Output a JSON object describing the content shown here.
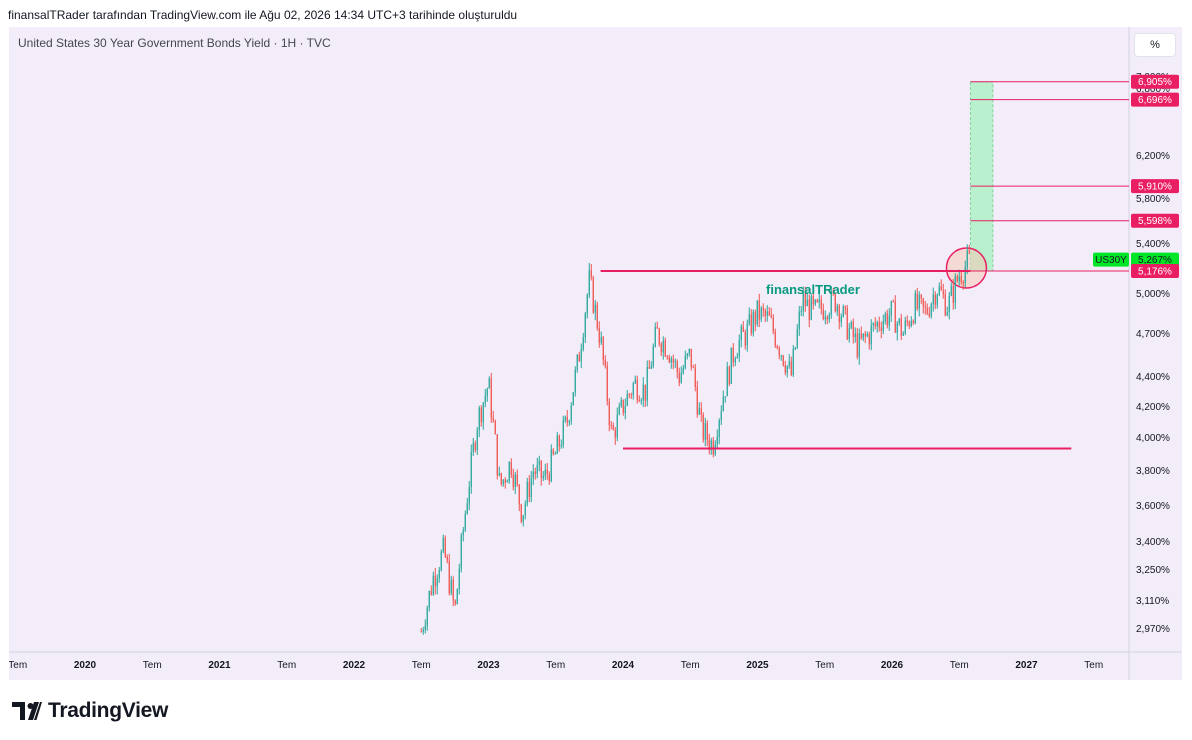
{
  "header": {
    "caption": "finansalTRader tarafından TradingView.com ile Ağu 02, 2026 14:34 UTC+3 tarihinde oluşturuldu"
  },
  "toolbar": {
    "symbol_title": "United States 30 Year Government Bonds Yield · 1H · TVC",
    "unit_label": "%"
  },
  "footer": {
    "brand": "TradingView"
  },
  "colors": {
    "panel_bg": "#f3edf9",
    "up": "#26a69a",
    "down": "#ef5350",
    "line": "#e91e63",
    "target_zone": "#b9f0cd",
    "circle": "#f6c9b8",
    "current_price": "#00e526",
    "watermark": "#089981"
  },
  "chart_data": {
    "type": "line",
    "title": "United States 30 Year Government Bonds Yield · 1H · TVC",
    "symbol": "US30Y",
    "watermark": "finansalTRader",
    "unit": "%",
    "x_labels": [
      "Tem",
      "2020",
      "Tem",
      "2021",
      "Tem",
      "2022",
      "Tem",
      "2023",
      "Tem",
      "2024",
      "Tem",
      "2025",
      "Tem",
      "2026",
      "Tem",
      "2027",
      "Tem"
    ],
    "y_ticks": [
      "7,000%",
      "6,800%",
      "6,200%",
      "5,800%",
      "5,400%",
      "5,000%",
      "4,700%",
      "4,400%",
      "4,200%",
      "4,000%",
      "3,800%",
      "3,600%",
      "3,400%",
      "3,250%",
      "3,110%",
      "2,970%"
    ],
    "y_scale": "log",
    "y_range": [
      2.85,
      7.1
    ],
    "x_range": [
      "2019-07",
      "2027-07"
    ],
    "price_labels": [
      {
        "label": "6,905%",
        "value": 6.905
      },
      {
        "label": "6,696%",
        "value": 6.696
      },
      {
        "label": "5,910%",
        "value": 5.91
      },
      {
        "label": "5,598%",
        "value": 5.598
      },
      {
        "label": "5,267%",
        "value": 5.267,
        "current": true
      },
      {
        "label": "5,176%",
        "value": 5.176
      }
    ],
    "series": [
      {
        "values_x": [
          "2022-07",
          "2022-08",
          "2022-09",
          "2022-10",
          "2022-11",
          "2022-12",
          "2023-01",
          "2023-02",
          "2023-03",
          "2023-04",
          "2023-05",
          "2023-06",
          "2023-07",
          "2023-08",
          "2023-09",
          "2023-10",
          "2023-11",
          "2023-12",
          "2024-01",
          "2024-02",
          "2024-03",
          "2024-04",
          "2024-05",
          "2024-06",
          "2024-07",
          "2024-08",
          "2024-09",
          "2024-10",
          "2024-11",
          "2024-12",
          "2025-01",
          "2025-02",
          "2025-03",
          "2025-04",
          "2025-05",
          "2025-06",
          "2025-07",
          "2025-08",
          "2025-09",
          "2025-10",
          "2025-11",
          "2025-12",
          "2026-01",
          "2026-02",
          "2026-03",
          "2026-04",
          "2026-05",
          "2026-06",
          "2026-07",
          "2026-08"
        ],
        "values_y": [
          2.95,
          3.2,
          3.35,
          3.05,
          3.6,
          4.1,
          4.35,
          3.7,
          3.85,
          3.55,
          3.8,
          3.75,
          3.9,
          4.1,
          4.5,
          5.1,
          4.65,
          4.0,
          4.2,
          4.35,
          4.3,
          4.7,
          4.6,
          4.4,
          4.55,
          4.05,
          3.95,
          4.3,
          4.6,
          4.7,
          4.85,
          4.8,
          4.6,
          4.4,
          4.95,
          4.85,
          4.9,
          4.95,
          4.75,
          4.6,
          4.7,
          4.8,
          4.85,
          4.7,
          4.9,
          4.85,
          5.05,
          4.9,
          5.15,
          5.267
        ]
      }
    ],
    "annotations": [
      {
        "type": "horizontal-segment",
        "from": "2023-11",
        "to": "2026-08",
        "value": 5.176
      },
      {
        "type": "horizontal-segment",
        "from": "2024-01",
        "to": "2027-05",
        "value": 3.93
      },
      {
        "type": "target-zone",
        "from": "2026-08",
        "to": "2026-10",
        "low": 5.176,
        "high": 6.905
      }
    ]
  }
}
